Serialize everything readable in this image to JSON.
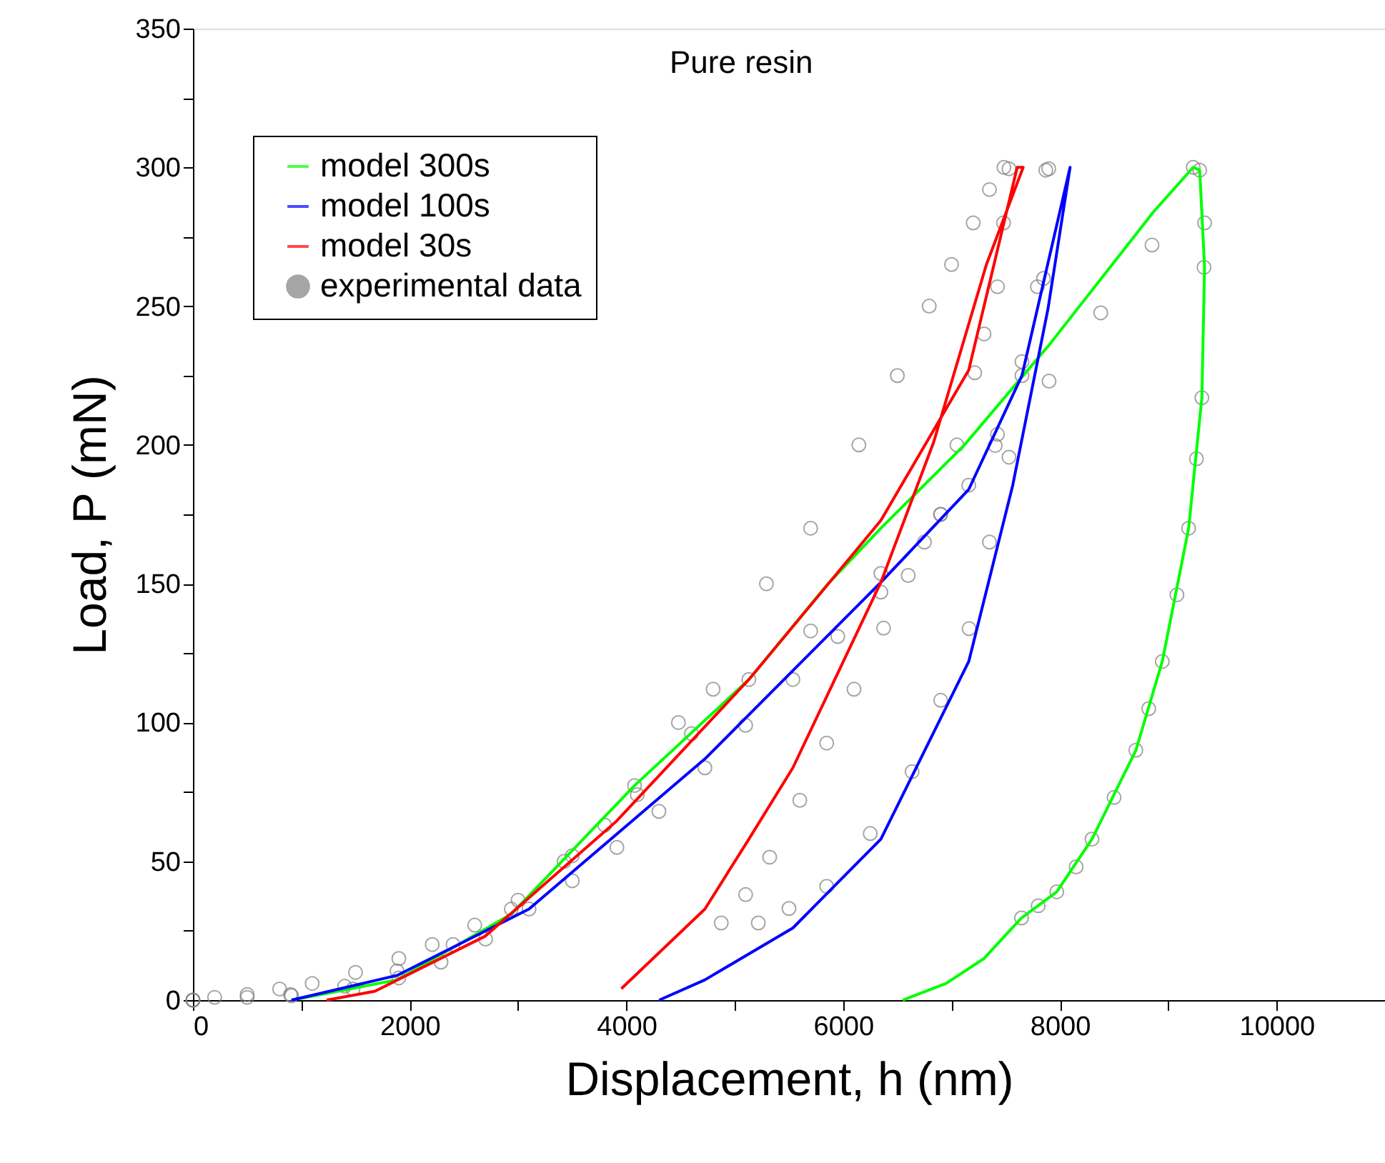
{
  "chart_data": {
    "type": "line",
    "title": "Pure resin",
    "xlabel": "Displacement, h (nm)",
    "ylabel": "Load, P (mN)",
    "xlim": [
      0,
      11000
    ],
    "ylim": [
      0,
      350
    ],
    "xticks": [
      0,
      {
        "value": 1000,
        "label": null
      },
      2000,
      {
        "value": 3000,
        "label": null
      },
      4000,
      {
        "value": 5000,
        "label": null
      },
      6000,
      {
        "value": 7000,
        "label": null
      },
      8000,
      {
        "value": 9000,
        "label": null
      },
      10000
    ],
    "yticks": [
      0,
      {
        "value": 25,
        "label": null
      },
      50,
      {
        "value": 75,
        "label": null
      },
      100,
      {
        "value": 125,
        "label": null
      },
      150,
      {
        "value": 175,
        "label": null
      },
      200,
      {
        "value": 225,
        "label": null
      },
      250,
      {
        "value": 275,
        "label": null
      },
      300,
      {
        "value": 325,
        "label": null
      },
      350
    ],
    "grid": false,
    "legend": "top left",
    "line_style": "solid",
    "series": [
      {
        "name": "experimental data",
        "type": "scatter",
        "marker": "circle",
        "color": "#808080",
        "x": [
          0,
          200,
          500,
          800,
          1100,
          1500,
          1900,
          2208,
          2600,
          3000,
          3425,
          3800,
          4100,
          4480,
          4800,
          5292,
          5700,
          6145,
          6500,
          6794,
          7000,
          7200,
          7350,
          7484,
          7530,
          7480,
          7424,
          7300,
          7214,
          7050,
          6899,
          6600,
          6373,
          6100,
          5848,
          5600,
          5322,
          5100,
          4875,
          0,
          500,
          900,
          1477,
          1900,
          2289,
          2700,
          3101,
          3500,
          3912,
          4300,
          4724,
          5100,
          5536,
          5950,
          6348,
          6750,
          7159,
          7424,
          7650,
          7849,
          7897,
          7870,
          7792,
          7650,
          7530,
          7350,
          7162,
          6900,
          6636,
          6250,
          5848,
          5500,
          5217,
          0,
          909,
          1400,
          1883,
          2400,
          2938,
          3500,
          4075,
          4600,
          5130,
          5700,
          6348,
          6900,
          7403,
          7900,
          8377,
          8850,
          9230,
          9290,
          9335,
          9330,
          9310,
          9260,
          9188,
          9080,
          8945,
          8820,
          8701,
          8500,
          8296,
          8150,
          7971,
          7800,
          7646
        ],
        "values": [
          0,
          1,
          2,
          4,
          6,
          10,
          15,
          20,
          27,
          36,
          50,
          63,
          74,
          100,
          112,
          150,
          170,
          200,
          225,
          250,
          265,
          280,
          292,
          300,
          299.5,
          280,
          257,
          240,
          226,
          200,
          175,
          153,
          134,
          112,
          92.6,
          72,
          51.5,
          38,
          27.8,
          0,
          1,
          2,
          4,
          8,
          13.7,
          22,
          32.8,
          43,
          55,
          68,
          83.7,
          99,
          115.5,
          131,
          147,
          165,
          185.5,
          203.8,
          230,
          260,
          299.5,
          299,
          257,
          225,
          195.6,
          165,
          133.8,
          108,
          82.3,
          60,
          41,
          33,
          27.8,
          0,
          1.6,
          5,
          10.5,
          20,
          32.8,
          52,
          77.3,
          96,
          115.5,
          133,
          153.7,
          175,
          199.8,
          223,
          247.6,
          272,
          300,
          299,
          280,
          264,
          217,
          195,
          170,
          146,
          122,
          105,
          90,
          73,
          58,
          48,
          39,
          34,
          29.6
        ]
      },
      {
        "name": "model 300s",
        "type": "line",
        "color": "#00ff00",
        "x": [
          909,
          1883,
          2938,
          4075,
          5130,
          5861,
          6348,
          7119,
          7900,
          8864,
          9230,
          9290,
          9335,
          9310,
          9188,
          8945,
          8701,
          8296,
          7971,
          7646,
          7300,
          6950,
          6550
        ],
        "values": [
          0,
          7.3,
          31,
          77.3,
          115.5,
          150,
          170,
          200,
          236,
          284,
          300,
          299,
          264,
          217,
          170,
          122,
          90,
          58,
          39,
          29.6,
          15,
          6,
          0
        ]
      },
      {
        "name": "model 100s",
        "type": "line",
        "color": "#0000ff",
        "x": [
          909,
          1883,
          3101,
          4724,
          6348,
          7159,
          7650,
          8094,
          7890,
          7565,
          7159,
          6348,
          5536,
          4724,
          4302
        ],
        "values": [
          0,
          8.9,
          32.8,
          86.9,
          150.5,
          184,
          225,
          300,
          249,
          185.5,
          122,
          58,
          26,
          7.3,
          0
        ]
      },
      {
        "name": "model 30s",
        "type": "line",
        "color": "#ff0000",
        "x": [
          1234,
          1680,
          2695,
          3912,
          5130,
          6348,
          7159,
          7606,
          7661,
          7322,
          6835,
          6348,
          5536,
          5130,
          4724,
          3953
        ],
        "values": [
          0,
          3.2,
          23,
          64.6,
          115.5,
          172.8,
          227,
          300,
          300,
          265,
          201,
          150.5,
          83.7,
          58,
          32.8,
          4.1
        ]
      }
    ]
  }
}
